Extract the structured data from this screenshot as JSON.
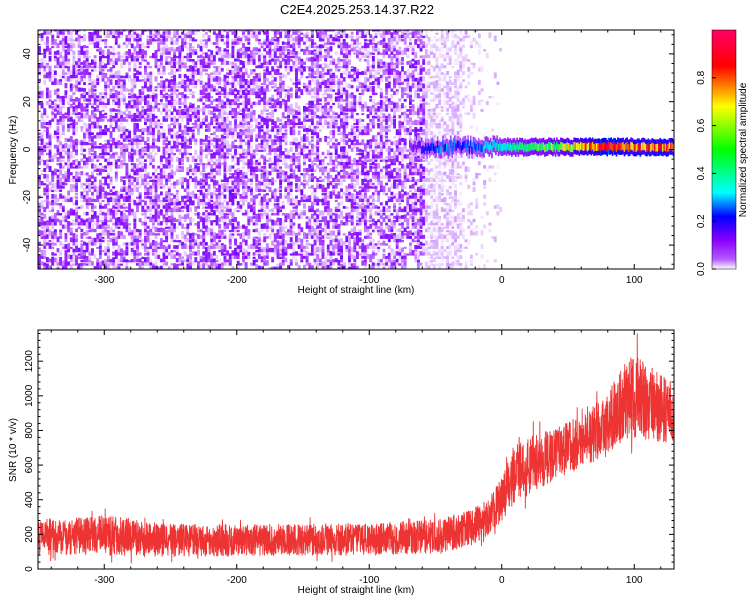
{
  "title": "C2E4.2025.253.14.37.R22",
  "chart_data": [
    {
      "type": "heatmap",
      "xlabel": "Height of straight line (km)",
      "ylabel": "Frequency (Hz)",
      "xlim": [
        -350,
        130
      ],
      "ylim": [
        -50,
        50
      ],
      "xticks": [
        -300,
        -200,
        -100,
        0,
        100
      ],
      "yticks": [
        -40,
        -20,
        0,
        20,
        40
      ],
      "colorbar": {
        "label": "Normalized spectral amplitude",
        "range": [
          0,
          1
        ],
        "ticks": [
          0.0,
          0.2,
          0.4,
          0.6,
          0.8
        ],
        "colors": [
          "#ffffff",
          "#8a00ff",
          "#0000ff",
          "#00ffff",
          "#00ff00",
          "#ffff00",
          "#ff0000",
          "#ff0066"
        ]
      },
      "noise_region": {
        "x": [
          -350,
          -30
        ],
        "typical_amplitude": 0.15
      },
      "signal_trace": {
        "frequency_hz": 1,
        "x": [
          -70,
          -55,
          -45,
          -30,
          0,
          40,
          80,
          130
        ],
        "amplitude": [
          0.15,
          0.3,
          0.35,
          0.3,
          0.45,
          0.6,
          0.85,
          0.75
        ]
      }
    },
    {
      "type": "line",
      "xlabel": "Height of straight line (km)",
      "ylabel": "SNR (10 * v/v)",
      "xlim": [
        -350,
        130
      ],
      "ylim": [
        0,
        1380
      ],
      "xticks": [
        -300,
        -200,
        -100,
        0,
        100
      ],
      "yticks": [
        0,
        200,
        400,
        600,
        800,
        1000,
        1200
      ],
      "color": "#ee3333",
      "series": [
        {
          "x": [
            -350,
            -300,
            -250,
            -200,
            -150,
            -100,
            -50,
            -25,
            -10,
            0,
            10,
            25,
            40,
            60,
            80,
            100,
            115,
            130
          ],
          "min": [
            40,
            30,
            30,
            35,
            40,
            40,
            50,
            80,
            150,
            220,
            300,
            380,
            450,
            520,
            600,
            650,
            650,
            650
          ],
          "max": [
            330,
            360,
            300,
            300,
            300,
            300,
            330,
            380,
            450,
            600,
            800,
            870,
            880,
            950,
            1100,
            1380,
            1250,
            1150
          ]
        }
      ]
    }
  ]
}
